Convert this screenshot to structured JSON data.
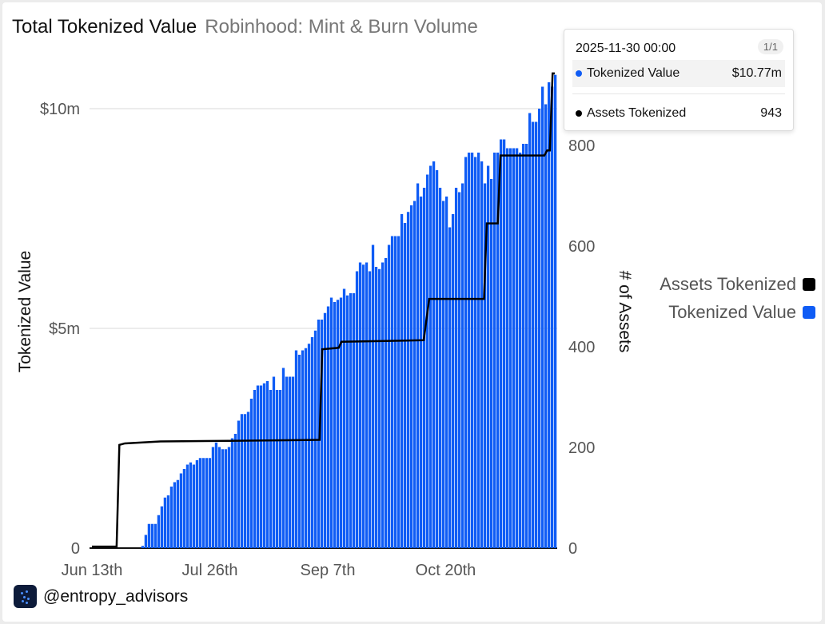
{
  "header": {
    "title": "Total Tokenized Value",
    "subtitle": "Robinhood: Mint & Burn Volume"
  },
  "tooltip": {
    "date": "2025-11-30 00:00",
    "page": "1/1",
    "rows": [
      {
        "label": "Tokenized Value",
        "value": "$10.77m",
        "color": "#0f5cf5"
      },
      {
        "label": "Assets Tokenized",
        "value": "943",
        "color": "#000000"
      }
    ]
  },
  "legend": [
    {
      "label": "Assets Tokenized",
      "color": "#000000"
    },
    {
      "label": "Tokenized Value",
      "color": "#0f5cf5"
    }
  ],
  "footer": {
    "handle": "@entropy_advisors"
  },
  "chart_data": {
    "type": "bar+line",
    "title": "Total Tokenized Value",
    "x_start": "2025-06-13",
    "x_end": "2025-11-30",
    "x_ticks": [
      {
        "label": "Jun 13th",
        "day": 0
      },
      {
        "label": "Jul 26th",
        "day": 43
      },
      {
        "label": "Sep 7th",
        "day": 86
      },
      {
        "label": "Oct 20th",
        "day": 129
      }
    ],
    "ylabel": "Tokenized Value",
    "y2label": "# of Assets",
    "ylim": [
      0,
      10.9
    ],
    "y_ticks": [
      {
        "label": "0",
        "value": 0
      },
      {
        "label": "$5m",
        "value": 5
      },
      {
        "label": "$10m",
        "value": 10
      }
    ],
    "y2lim": [
      0,
      1000
    ],
    "y2_ticks": [
      "0",
      "200",
      "400",
      "600",
      "800"
    ],
    "bars": {
      "name": "Tokenized Value",
      "unit": "$m",
      "start": "2025-07-01",
      "end": "2025-11-30",
      "color": "#0f5cf5",
      "values": [
        0.05,
        0.3,
        0.55,
        0.55,
        0.55,
        0.75,
        0.95,
        1.15,
        1.2,
        1.4,
        1.5,
        1.55,
        1.7,
        1.8,
        1.9,
        1.95,
        1.9,
        2.0,
        2.05,
        2.05,
        2.05,
        2.05,
        2.3,
        2.4,
        2.3,
        2.25,
        2.25,
        2.3,
        2.5,
        2.6,
        2.9,
        3.05,
        3.05,
        3.1,
        3.4,
        3.6,
        3.7,
        3.7,
        3.75,
        3.8,
        3.6,
        3.9,
        3.6,
        3.6,
        4.1,
        3.9,
        3.9,
        3.9,
        4.5,
        4.4,
        4.5,
        4.55,
        4.65,
        4.8,
        4.95,
        5.2,
        5.2,
        5.35,
        5.5,
        5.7,
        5.6,
        5.65,
        5.7,
        5.9,
        5.75,
        5.8,
        5.8,
        6.3,
        6.5,
        6.45,
        6.5,
        6.3,
        6.9,
        6.4,
        6.35,
        6.5,
        6.6,
        6.9,
        7.1,
        7.1,
        7.1,
        7.6,
        7.4,
        7.65,
        7.8,
        7.9,
        8.3,
        8.0,
        8.2,
        8.5,
        8.7,
        8.8,
        8.6,
        8.2,
        7.9,
        8.0,
        7.3,
        7.6,
        8.2,
        8.1,
        8.3,
        8.9,
        9.0,
        9.0,
        8.9,
        9.0,
        8.8,
        8.3,
        8.7,
        8.4,
        9.0,
        9.0,
        9.3,
        9.3,
        9.1,
        9.1,
        9.1,
        9.1,
        9.0,
        9.2,
        9.2,
        9.9,
        9.7,
        9.7,
        10.0,
        10.5,
        10.1,
        10.6,
        10.5,
        10.77
      ]
    },
    "line": {
      "name": "Assets Tokenized",
      "color": "#000000",
      "points": [
        [
          0,
          3
        ],
        [
          9,
          3
        ],
        [
          10,
          205
        ],
        [
          12,
          208
        ],
        [
          25,
          212
        ],
        [
          50,
          213
        ],
        [
          83,
          215
        ],
        [
          84,
          395
        ],
        [
          90,
          398
        ],
        [
          91,
          410
        ],
        [
          121,
          413
        ],
        [
          123,
          495
        ],
        [
          143,
          495
        ],
        [
          144,
          645
        ],
        [
          148,
          645
        ],
        [
          149,
          780
        ],
        [
          165,
          780
        ],
        [
          166,
          790
        ],
        [
          167,
          790
        ],
        [
          168,
          943
        ],
        [
          170,
          943
        ]
      ]
    }
  }
}
